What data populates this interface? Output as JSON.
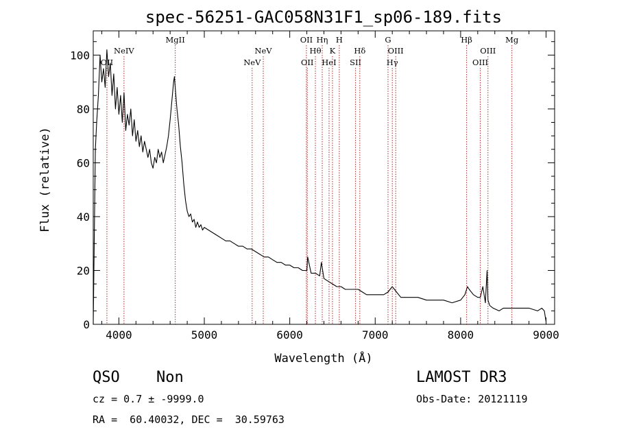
{
  "chart_data": {
    "type": "line",
    "title": "spec-56251-GAC058N31F1_sp06-189.fits",
    "xlabel": "Wavelength (Å)",
    "ylabel": "Flux (relative)",
    "xlim": [
      3700,
      9100
    ],
    "ylim": [
      0,
      109
    ],
    "xticks": [
      4000,
      5000,
      6000,
      7000,
      8000,
      9000
    ],
    "yticks": [
      0,
      20,
      40,
      60,
      80,
      100
    ],
    "grid": false,
    "series": [
      {
        "x": [
          3700,
          3725,
          3740,
          3760,
          3780,
          3800,
          3820,
          3840,
          3860,
          3880,
          3900,
          3920,
          3940,
          3960,
          3980,
          4000,
          4020,
          4040,
          4060,
          4080,
          4100,
          4120,
          4140,
          4160,
          4180,
          4200,
          4220,
          4240,
          4260,
          4280,
          4300,
          4320,
          4340,
          4360,
          4380,
          4400,
          4420,
          4440,
          4460,
          4480,
          4500,
          4520,
          4540,
          4560,
          4580,
          4600,
          4620,
          4640,
          4650,
          4660,
          4680,
          4700,
          4720,
          4740,
          4760,
          4780,
          4800,
          4820,
          4840,
          4860,
          4880,
          4900,
          4920,
          4940,
          4960,
          4980,
          5000,
          5050,
          5100,
          5150,
          5200,
          5250,
          5300,
          5350,
          5400,
          5450,
          5500,
          5550,
          5600,
          5650,
          5700,
          5750,
          5800,
          5850,
          5900,
          5950,
          6000,
          6050,
          6100,
          6150,
          6200,
          6210,
          6250,
          6300,
          6350,
          6370,
          6400,
          6450,
          6500,
          6550,
          6600,
          6650,
          6700,
          6750,
          6800,
          6850,
          6900,
          6950,
          7000,
          7050,
          7100,
          7150,
          7200,
          7250,
          7300,
          7400,
          7500,
          7600,
          7700,
          7800,
          7900,
          8000,
          8050,
          8080,
          8100,
          8150,
          8200,
          8230,
          8260,
          8290,
          8310,
          8320,
          8340,
          8380,
          8450,
          8500,
          8600,
          8700,
          8800,
          8900,
          8950,
          8980,
          9000
        ],
        "y": [
          0,
          65,
          75,
          85,
          100,
          90,
          95,
          88,
          102,
          92,
          97,
          85,
          93,
          80,
          88,
          78,
          85,
          75,
          86,
          72,
          78,
          74,
          80,
          70,
          76,
          68,
          72,
          66,
          70,
          64,
          68,
          65,
          62,
          65,
          60,
          58,
          62,
          60,
          65,
          62,
          64,
          60,
          63,
          66,
          70,
          76,
          83,
          90,
          92,
          88,
          80,
          74,
          66,
          60,
          52,
          46,
          42,
          40,
          41,
          38,
          39,
          36,
          38,
          36,
          37,
          35,
          36,
          35,
          34,
          33,
          32,
          31,
          31,
          30,
          29,
          29,
          28,
          28,
          27,
          26,
          25,
          25,
          24,
          23,
          23,
          22,
          22,
          21,
          21,
          20,
          20,
          25,
          19,
          19,
          18,
          23,
          17,
          16,
          15,
          14,
          14,
          13,
          13,
          13,
          13,
          12,
          11,
          11,
          11,
          11,
          11,
          12,
          14,
          12,
          10,
          10,
          10,
          9,
          9,
          9,
          8,
          9,
          11,
          14,
          13,
          11,
          10,
          10,
          14,
          8,
          20,
          9,
          7,
          6,
          5,
          6,
          6,
          6,
          6,
          5,
          6,
          5,
          1
        ]
      }
    ],
    "line_labels": [
      {
        "wavelength": 3860,
        "label": "OII",
        "row": 3
      },
      {
        "wavelength": 4060,
        "label": "NeIV",
        "row": 2
      },
      {
        "wavelength": 4660,
        "label": "MgII",
        "row": 1
      },
      {
        "wavelength": 5560,
        "label": "NeV",
        "row": 3
      },
      {
        "wavelength": 5690,
        "label": "NeV",
        "row": 2
      },
      {
        "wavelength": 6195,
        "label": "OII",
        "row": 1
      },
      {
        "wavelength": 6205,
        "label": "OII",
        "row": 3
      },
      {
        "wavelength": 6300,
        "label": "Hθ",
        "row": 2
      },
      {
        "wavelength": 6380,
        "label": "Hη",
        "row": 1
      },
      {
        "wavelength": 6460,
        "label": "HeI",
        "row": 3
      },
      {
        "wavelength": 6500,
        "label": "K",
        "row": 2
      },
      {
        "wavelength": 6580,
        "label": "H",
        "row": 1
      },
      {
        "wavelength": 6770,
        "label": "SII",
        "row": 3
      },
      {
        "wavelength": 6820,
        "label": "Hδ",
        "row": 2
      },
      {
        "wavelength": 7150,
        "label": "G",
        "row": 1
      },
      {
        "wavelength": 7200,
        "label": "Hγ",
        "row": 3
      },
      {
        "wavelength": 7240,
        "label": "OIII",
        "row": 2
      },
      {
        "wavelength": 8070,
        "label": "Hβ",
        "row": 1
      },
      {
        "wavelength": 8230,
        "label": "OIII",
        "row": 3
      },
      {
        "wavelength": 8320,
        "label": "OIII",
        "row": 2
      },
      {
        "wavelength": 8600,
        "label": "Mg",
        "row": 1
      }
    ]
  },
  "footer": {
    "class": "QSO",
    "subclass": "Non",
    "survey": "LAMOST DR3",
    "redshift": "cz = 0.7 ± -9999.0",
    "obs_date": "Obs-Date: 20121119",
    "coords": "RA =  60.40032, DEC =  30.59763"
  },
  "colors": {
    "spectrum": "#000000",
    "line_marker": "#b22222",
    "axes": "#000000"
  }
}
